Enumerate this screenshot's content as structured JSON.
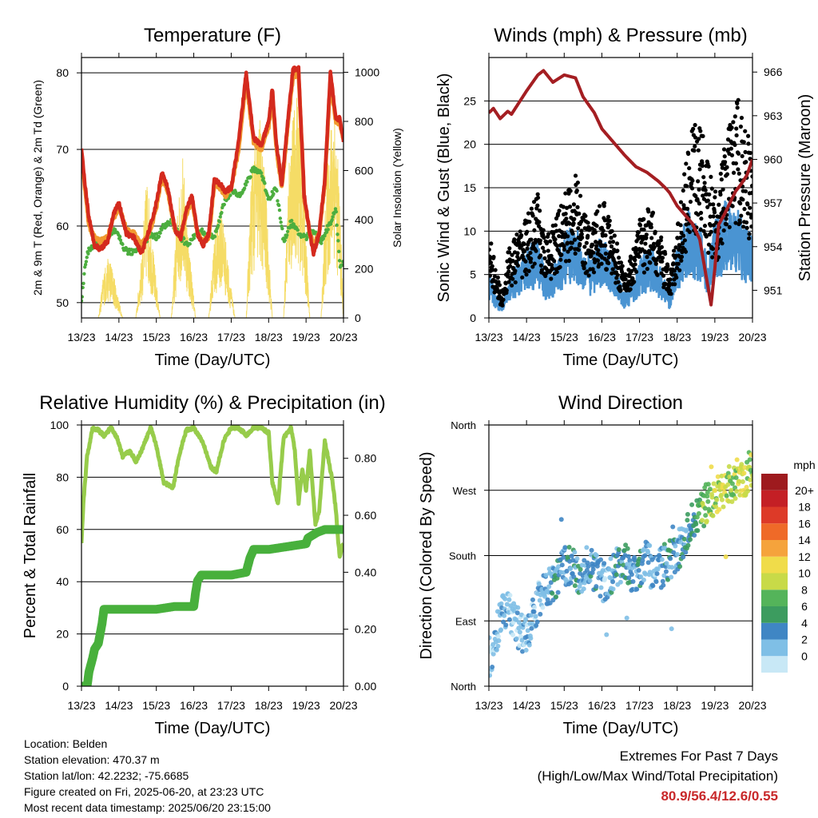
{
  "colors": {
    "temp2m": "#d42a1e",
    "temp9m": "#f19a30",
    "dewpoint": "#4cae3f",
    "solar": "#f5dc66",
    "wind": "#4a94d2",
    "gust": "#000000",
    "pressure": "#a41e22",
    "rh": "#97cc4b",
    "precip": "#48b03c"
  },
  "info": {
    "location": "Location: Belden",
    "elevation": "Station elevation: 470.37 m",
    "latlon": "Station lat/lon: 42.2232; -75.6685",
    "created": "Figure created on Fri, 2025-06-20, at 23:23 UTC",
    "recent": "Most recent data timestamp: 2025/06/20 23:15:00"
  },
  "extremes": {
    "title": "Extremes For Past 7 Days",
    "subtitle": "(High/Low/Max Wind/Total Precipitation)",
    "values": "80.9/56.4/12.6/0.55"
  },
  "chart_data": [
    {
      "type": "line",
      "title": "Temperature (F)",
      "xlabel": "Time (Day/UTC)",
      "ylabel": "2m & 9m T (Red, Orange) & 2m Td (Green)",
      "y2label": "Solar Insolation (Yellow)",
      "categories": [
        "13/23",
        "14/23",
        "15/23",
        "16/23",
        "17/23",
        "18/23",
        "19/23",
        "20/23"
      ],
      "ylim": [
        48,
        82
      ],
      "yticks": [
        50,
        60,
        70,
        80
      ],
      "y2lim": [
        0,
        1060
      ],
      "y2ticks": [
        0,
        200,
        400,
        600,
        800,
        1000
      ],
      "grid": true,
      "series": [
        {
          "name": "2m T",
          "axis": "left",
          "color_key": "temp2m",
          "x": [
            0,
            0.08,
            0.2,
            0.35,
            0.5,
            0.7,
            0.85,
            1.0,
            1.1,
            1.2,
            1.4,
            1.6,
            1.75,
            1.9,
            2.0,
            2.15,
            2.3,
            2.5,
            2.65,
            2.8,
            2.95,
            3.1,
            3.25,
            3.4,
            3.55,
            3.7,
            3.85,
            4.0,
            4.2,
            4.4,
            4.6,
            4.8,
            5.0,
            5.1,
            5.2,
            5.35,
            5.5,
            5.65,
            5.8,
            5.95,
            6.1,
            6.2,
            6.35,
            6.5,
            6.65,
            6.8,
            6.9,
            7.0
          ],
          "y": [
            70,
            66,
            61,
            57.5,
            57,
            58,
            61.5,
            63,
            61,
            59,
            58.5,
            56.5,
            58.5,
            61,
            63,
            67,
            65,
            59.5,
            58.5,
            62,
            64,
            59,
            57.5,
            59,
            66,
            65.5,
            64.5,
            65,
            71,
            80,
            71.5,
            70.5,
            73.5,
            78,
            71,
            65.5,
            73,
            80.5,
            80.5,
            64,
            59,
            56.5,
            59,
            66,
            80,
            74,
            74,
            71
          ]
        },
        {
          "name": "9m T",
          "axis": "left",
          "color_key": "temp9m",
          "x": [
            0,
            0.08,
            0.2,
            0.35,
            0.5,
            0.7,
            0.85,
            1.0,
            1.1,
            1.2,
            1.4,
            1.6,
            1.75,
            1.9,
            2.0,
            2.15,
            2.3,
            2.5,
            2.65,
            2.8,
            2.95,
            3.1,
            3.25,
            3.4,
            3.55,
            3.7,
            3.85,
            4.0,
            4.2,
            4.4,
            4.6,
            4.8,
            5.0,
            5.1,
            5.2,
            5.35,
            5.5,
            5.65,
            5.8,
            5.95,
            6.1,
            6.2,
            6.35,
            6.5,
            6.65,
            6.8,
            6.9,
            7.0
          ],
          "y": [
            69.5,
            65.5,
            60,
            58.5,
            58,
            58.5,
            61,
            62.5,
            61,
            59.5,
            59,
            57.5,
            58.5,
            60.5,
            62.5,
            66.5,
            64.5,
            59.5,
            58.5,
            61.5,
            63.5,
            59,
            58,
            58.5,
            65.5,
            65,
            64,
            65,
            70,
            79,
            71,
            70,
            73,
            77,
            70.5,
            65,
            72.5,
            79.5,
            80,
            63.5,
            59,
            57.5,
            59,
            65.5,
            79,
            73.5,
            73.5,
            71
          ]
        },
        {
          "name": "2m Td",
          "axis": "left",
          "color_key": "dewpoint",
          "x": [
            0,
            0.1,
            0.2,
            0.35,
            0.5,
            0.7,
            0.85,
            1.0,
            1.15,
            1.3,
            1.5,
            1.7,
            1.85,
            2.0,
            2.2,
            2.4,
            2.6,
            2.8,
            3.0,
            3.2,
            3.4,
            3.6,
            3.8,
            4.0,
            4.2,
            4.4,
            4.6,
            4.8,
            5.0,
            5.2,
            5.4,
            5.6,
            5.8,
            6.0,
            6.2,
            6.4,
            6.6,
            6.8,
            6.9,
            7.0
          ],
          "y": [
            50,
            55,
            57,
            57.5,
            58,
            58,
            59.5,
            58.5,
            57,
            56.5,
            57,
            58,
            59,
            58.5,
            60,
            60.5,
            59,
            57.5,
            58.5,
            59.5,
            58.5,
            59,
            63,
            64.5,
            64,
            65.5,
            67.5,
            67,
            63.5,
            65,
            58,
            60.5,
            59,
            58.5,
            59.5,
            58,
            60,
            62,
            55,
            55
          ]
        },
        {
          "name": "Solar Insolation",
          "axis": "right",
          "color_key": "solar",
          "x": [
            0,
            0.45,
            0.6,
            0.75,
            0.9,
            1.1,
            1.45,
            1.6,
            1.75,
            1.9,
            2.1,
            2.4,
            2.55,
            2.7,
            2.85,
            3.05,
            3.4,
            3.55,
            3.75,
            3.9,
            4.1,
            4.4,
            4.55,
            4.75,
            4.9,
            5.1,
            5.4,
            5.55,
            5.75,
            5.9,
            6.1,
            6.4,
            6.55,
            6.75,
            6.9,
            7.0
          ],
          "y": [
            0,
            0,
            200,
            260,
            150,
            0,
            0,
            250,
            600,
            300,
            0,
            0,
            420,
            680,
            350,
            0,
            0,
            350,
            480,
            250,
            0,
            0,
            650,
            850,
            600,
            0,
            0,
            700,
            950,
            650,
            0,
            0,
            600,
            950,
            500,
            0
          ]
        }
      ]
    },
    {
      "type": "line",
      "title": "Winds (mph) & Pressure (mb)",
      "xlabel": "Time (Day/UTC)",
      "ylabel": "Sonic Wind & Gust (Blue, Black)",
      "y2label": "Station Pressure (Maroon)",
      "categories": [
        "13/23",
        "14/23",
        "15/23",
        "16/23",
        "17/23",
        "18/23",
        "19/23",
        "20/23"
      ],
      "ylim": [
        0,
        30
      ],
      "yticks": [
        0,
        5,
        10,
        15,
        20,
        25
      ],
      "y2lim": [
        949.1,
        967.0
      ],
      "y2ticks": [
        951,
        954,
        957,
        960,
        963,
        966
      ],
      "grid": true,
      "series": [
        {
          "name": "Sonic Wind",
          "axis": "left",
          "color_key": "wind",
          "x": [
            0,
            0.2,
            0.35,
            0.5,
            0.8,
            1.0,
            1.3,
            1.5,
            1.8,
            2.0,
            2.3,
            2.5,
            2.7,
            3.0,
            3.3,
            3.6,
            3.8,
            4.0,
            4.3,
            4.6,
            4.8,
            5.0,
            5.3,
            5.6,
            5.8,
            6.0,
            6.3,
            6.6,
            6.8,
            7.0
          ],
          "y": [
            4,
            2,
            1,
            3,
            5,
            6,
            6.5,
            4,
            5,
            7,
            8,
            6,
            5,
            7,
            5,
            2,
            3,
            5,
            6,
            4,
            2,
            6,
            9,
            8,
            5,
            8,
            10,
            9,
            8,
            7
          ]
        },
        {
          "name": "Gust",
          "axis": "left",
          "color_key": "gust",
          "x": [
            0,
            0.15,
            0.35,
            0.5,
            0.8,
            1.0,
            1.3,
            1.5,
            1.8,
            2.0,
            2.3,
            2.5,
            2.7,
            3.0,
            3.3,
            3.6,
            3.8,
            4.0,
            4.3,
            4.6,
            4.8,
            5.0,
            5.2,
            5.4,
            5.6,
            5.8,
            6.0,
            6.3,
            6.6,
            6.8,
            7.0
          ],
          "y": [
            9,
            5,
            2,
            6,
            8,
            9,
            11,
            7,
            9,
            11,
            13,
            10,
            8,
            11,
            8,
            4,
            6,
            9,
            10,
            7,
            4,
            8,
            13,
            17,
            18,
            14,
            11,
            16,
            20,
            17,
            15
          ]
        },
        {
          "name": "Station Pressure",
          "axis": "right",
          "color_key": "pressure",
          "x": [
            0,
            0.12,
            0.3,
            0.5,
            0.6,
            0.8,
            1.0,
            1.3,
            1.45,
            1.7,
            2.0,
            2.3,
            2.5,
            2.8,
            3.0,
            3.3,
            3.6,
            3.9,
            4.2,
            4.5,
            4.7,
            4.8,
            5.0,
            5.2,
            5.4,
            5.6,
            5.8,
            5.9,
            6.0,
            6.1,
            6.25,
            6.4,
            6.55,
            6.7,
            6.85,
            7.0
          ],
          "y": [
            963.2,
            963.5,
            962.8,
            963.3,
            963.1,
            963.9,
            964.7,
            965.8,
            966.1,
            965.3,
            965.8,
            965.6,
            964.3,
            963.2,
            962.1,
            961.2,
            960.3,
            959.5,
            959.1,
            958.5,
            958.0,
            957.7,
            956.8,
            956.2,
            955.6,
            954.5,
            951.5,
            950.0,
            952.5,
            955.5,
            956.2,
            957.0,
            957.8,
            958.3,
            958.9,
            960.0
          ]
        }
      ]
    },
    {
      "type": "line",
      "title": "Relative Humidity (%) & Precipitation (in)",
      "xlabel": "Time (Day/UTC)",
      "ylabel": "Percent & Total Rainfall",
      "categories": [
        "13/23",
        "14/23",
        "15/23",
        "16/23",
        "17/23",
        "18/23",
        "19/23",
        "20/23"
      ],
      "ylim": [
        0,
        100
      ],
      "yticks": [
        0,
        20,
        40,
        60,
        80,
        100
      ],
      "y2lim": [
        0,
        0.917
      ],
      "y2ticks": [
        "0.00",
        "0.20",
        "0.40",
        "0.60",
        "0.80"
      ],
      "grid": true,
      "series": [
        {
          "name": "Relative Humidity",
          "axis": "left",
          "color_key": "rh",
          "x": [
            0,
            0.05,
            0.15,
            0.3,
            0.45,
            0.6,
            0.8,
            0.95,
            1.1,
            1.3,
            1.45,
            1.6,
            1.85,
            2.0,
            2.2,
            2.45,
            2.6,
            2.8,
            3.0,
            3.25,
            3.45,
            3.6,
            3.8,
            4.0,
            4.2,
            4.4,
            4.6,
            4.8,
            5.0,
            5.1,
            5.25,
            5.4,
            5.6,
            5.7,
            5.8,
            5.9,
            6.0,
            6.1,
            6.25,
            6.35,
            6.5,
            6.7,
            6.8,
            6.85,
            6.9,
            7.0
          ],
          "y": [
            55,
            70,
            88,
            99,
            98,
            96,
            99,
            95,
            88,
            90,
            86,
            90,
            99,
            92,
            78,
            76,
            88,
            98,
            99,
            93,
            84,
            82,
            94,
            99,
            99,
            96,
            99,
            99,
            97,
            78,
            70,
            95,
            99,
            90,
            70,
            83,
            75,
            90,
            62,
            67,
            94,
            79,
            67,
            57,
            50,
            55
          ]
        },
        {
          "name": "Total Rainfall",
          "axis": "right",
          "color_key": "precip",
          "x": [
            0,
            0.15,
            0.2,
            0.3,
            0.35,
            0.45,
            0.55,
            0.6,
            1.0,
            1.5,
            2.0,
            2.5,
            3.0,
            3.05,
            3.1,
            3.2,
            3.5,
            4.0,
            4.4,
            4.5,
            4.6,
            5.0,
            5.5,
            6.0,
            6.05,
            6.3,
            6.5,
            7.0
          ],
          "y": [
            0,
            0,
            0.05,
            0.1,
            0.13,
            0.15,
            0.22,
            0.27,
            0.27,
            0.27,
            0.27,
            0.28,
            0.28,
            0.33,
            0.37,
            0.39,
            0.39,
            0.39,
            0.4,
            0.45,
            0.48,
            0.48,
            0.49,
            0.5,
            0.52,
            0.54,
            0.55,
            0.55
          ]
        }
      ]
    },
    {
      "type": "scatter",
      "title": "Wind Direction",
      "xlabel": "Time (Day/UTC)",
      "ylabel": "Direction (Colored By Speed)",
      "categories": [
        "13/23",
        "14/23",
        "15/23",
        "16/23",
        "17/23",
        "18/23",
        "19/23",
        "20/23"
      ],
      "ylim": [
        0,
        360
      ],
      "ytick_labels": [
        "North",
        "East",
        "South",
        "West",
        "North"
      ],
      "yticks": [
        0,
        90,
        180,
        270,
        360
      ],
      "grid": true,
      "colorbar": {
        "title": "mph",
        "labels": [
          "0",
          "2",
          "4",
          "6",
          "8",
          "10",
          "12",
          "14",
          "16",
          "18",
          "20+"
        ],
        "colors": [
          "#c8e8f6",
          "#7fbfe6",
          "#3f86c4",
          "#3c9c5f",
          "#54b45a",
          "#c8da48",
          "#f0dc4a",
          "#f5a33c",
          "#ef6a28",
          "#dd3a28",
          "#c41f25",
          "#9e1a1e"
        ]
      },
      "series": [
        {
          "name": "Wind Direction",
          "x": [
            0.05,
            0.2,
            0.4,
            0.6,
            0.9,
            1.1,
            1.3,
            1.6,
            1.8,
            2.0,
            2.2,
            2.4,
            2.6,
            2.8,
            3.0,
            3.2,
            3.4,
            3.6,
            3.8,
            4.0,
            4.2,
            4.4,
            4.6,
            4.8,
            5.0,
            5.2,
            5.4,
            5.6,
            5.8,
            6.0,
            6.2,
            6.4,
            6.6,
            6.8,
            7.0
          ],
          "y": [
            40,
            75,
            110,
            95,
            70,
            80,
            115,
            140,
            150,
            165,
            170,
            150,
            165,
            160,
            140,
            150,
            165,
            175,
            155,
            160,
            175,
            150,
            165,
            175,
            185,
            205,
            225,
            240,
            255,
            260,
            270,
            280,
            285,
            290,
            300
          ],
          "speed": [
            2,
            3,
            4,
            2,
            3,
            4,
            3,
            4,
            5,
            4,
            6,
            5,
            4,
            5,
            3,
            4,
            5,
            6,
            4,
            5,
            4,
            3,
            4,
            5,
            4,
            5,
            6,
            8,
            10,
            11,
            12,
            10,
            11,
            12,
            10
          ]
        }
      ]
    }
  ]
}
